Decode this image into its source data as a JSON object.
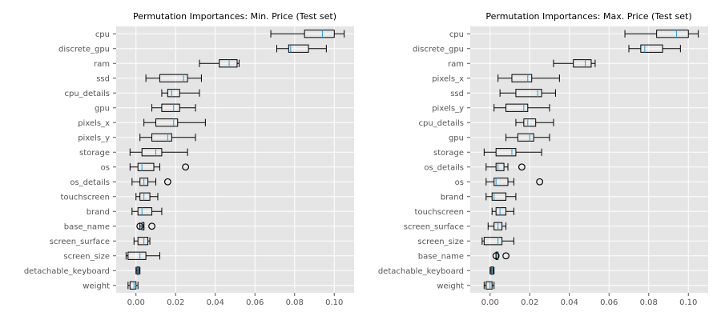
{
  "chart_data": [
    {
      "type": "boxplot",
      "title": "Permutation Importances: Min. Price (Test set)",
      "xlim": [
        -0.01,
        0.11
      ],
      "xticks": [
        0.0,
        0.02,
        0.04,
        0.06,
        0.08,
        0.1
      ],
      "xtick_labels": [
        "0.00",
        "0.02",
        "0.04",
        "0.06",
        "0.08",
        "0.10"
      ],
      "features": [
        {
          "name": "cpu",
          "whislo": 0.068,
          "q1": 0.085,
          "med": 0.094,
          "q3": 0.1,
          "whishi": 0.105,
          "fliers": []
        },
        {
          "name": "discrete_gpu",
          "whislo": 0.071,
          "q1": 0.077,
          "med": 0.078,
          "q3": 0.087,
          "whishi": 0.096,
          "fliers": []
        },
        {
          "name": "ram",
          "whislo": 0.032,
          "q1": 0.042,
          "med": 0.047,
          "q3": 0.051,
          "whishi": 0.052,
          "fliers": []
        },
        {
          "name": "ssd",
          "whislo": 0.005,
          "q1": 0.012,
          "med": 0.024,
          "q3": 0.026,
          "whishi": 0.033,
          "fliers": []
        },
        {
          "name": "cpu_details",
          "whislo": 0.013,
          "q1": 0.016,
          "med": 0.018,
          "q3": 0.022,
          "whishi": 0.032,
          "fliers": []
        },
        {
          "name": "gpu",
          "whislo": 0.008,
          "q1": 0.013,
          "med": 0.019,
          "q3": 0.022,
          "whishi": 0.03,
          "fliers": []
        },
        {
          "name": "pixels_x",
          "whislo": 0.004,
          "q1": 0.01,
          "med": 0.019,
          "q3": 0.021,
          "whishi": 0.035,
          "fliers": []
        },
        {
          "name": "pixels_y",
          "whislo": 0.002,
          "q1": 0.008,
          "med": 0.016,
          "q3": 0.018,
          "whishi": 0.03,
          "fliers": []
        },
        {
          "name": "storage",
          "whislo": -0.003,
          "q1": 0.003,
          "med": 0.01,
          "q3": 0.013,
          "whishi": 0.026,
          "fliers": []
        },
        {
          "name": "os",
          "whislo": -0.003,
          "q1": 0.001,
          "med": 0.003,
          "q3": 0.009,
          "whishi": 0.012,
          "fliers": [
            0.025
          ]
        },
        {
          "name": "os_details",
          "whislo": -0.002,
          "q1": 0.002,
          "med": 0.004,
          "q3": 0.006,
          "whishi": 0.01,
          "fliers": [
            0.016
          ]
        },
        {
          "name": "touchscreen",
          "whislo": 0.0,
          "q1": 0.002,
          "med": 0.004,
          "q3": 0.007,
          "whishi": 0.011,
          "fliers": []
        },
        {
          "name": "brand",
          "whislo": -0.002,
          "q1": 0.001,
          "med": 0.003,
          "q3": 0.008,
          "whishi": 0.013,
          "fliers": []
        },
        {
          "name": "base_name",
          "whislo": 0.002,
          "q1": 0.003,
          "med": 0.003,
          "q3": 0.004,
          "whishi": 0.004,
          "fliers": [
            0.002,
            0.008
          ]
        },
        {
          "name": "screen_surface",
          "whislo": -0.001,
          "q1": 0.001,
          "med": 0.004,
          "q3": 0.006,
          "whishi": 0.007,
          "fliers": []
        },
        {
          "name": "screen_size",
          "whislo": -0.005,
          "q1": -0.004,
          "med": 0.002,
          "q3": 0.005,
          "whishi": 0.012,
          "fliers": []
        },
        {
          "name": "detachable_keyboard",
          "whislo": 0.0,
          "q1": 0.0005,
          "med": 0.001,
          "q3": 0.0015,
          "whishi": 0.002,
          "fliers": []
        },
        {
          "name": "weight",
          "whislo": -0.004,
          "q1": -0.003,
          "med": -0.001,
          "q3": 0.0,
          "whishi": 0.001,
          "fliers": []
        }
      ]
    },
    {
      "type": "boxplot",
      "title": "Permutation Importances: Max. Price (Test set)",
      "xlim": [
        -0.01,
        0.11
      ],
      "xticks": [
        0.0,
        0.02,
        0.04,
        0.06,
        0.08,
        0.1
      ],
      "xtick_labels": [
        "0.00",
        "0.02",
        "0.04",
        "0.06",
        "0.08",
        "0.10"
      ],
      "features": [
        {
          "name": "cpu",
          "whislo": 0.068,
          "q1": 0.084,
          "med": 0.094,
          "q3": 0.1,
          "whishi": 0.105,
          "fliers": []
        },
        {
          "name": "discrete_gpu",
          "whislo": 0.07,
          "q1": 0.076,
          "med": 0.078,
          "q3": 0.087,
          "whishi": 0.096,
          "fliers": []
        },
        {
          "name": "ram",
          "whislo": 0.032,
          "q1": 0.042,
          "med": 0.048,
          "q3": 0.051,
          "whishi": 0.053,
          "fliers": []
        },
        {
          "name": "pixels_x",
          "whislo": 0.004,
          "q1": 0.011,
          "med": 0.019,
          "q3": 0.021,
          "whishi": 0.035,
          "fliers": []
        },
        {
          "name": "ssd",
          "whislo": 0.005,
          "q1": 0.013,
          "med": 0.024,
          "q3": 0.026,
          "whishi": 0.033,
          "fliers": []
        },
        {
          "name": "pixels_y",
          "whislo": 0.002,
          "q1": 0.008,
          "med": 0.017,
          "q3": 0.019,
          "whishi": 0.03,
          "fliers": []
        },
        {
          "name": "cpu_details",
          "whislo": 0.013,
          "q1": 0.017,
          "med": 0.019,
          "q3": 0.023,
          "whishi": 0.032,
          "fliers": []
        },
        {
          "name": "gpu",
          "whislo": 0.008,
          "q1": 0.014,
          "med": 0.02,
          "q3": 0.022,
          "whishi": 0.03,
          "fliers": []
        },
        {
          "name": "storage",
          "whislo": -0.003,
          "q1": 0.003,
          "med": 0.011,
          "q3": 0.013,
          "whishi": 0.026,
          "fliers": []
        },
        {
          "name": "os_details",
          "whislo": -0.002,
          "q1": 0.003,
          "med": 0.004,
          "q3": 0.007,
          "whishi": 0.009,
          "fliers": [
            0.016
          ]
        },
        {
          "name": "os",
          "whislo": -0.002,
          "q1": 0.002,
          "med": 0.003,
          "q3": 0.009,
          "whishi": 0.012,
          "fliers": [
            0.025
          ]
        },
        {
          "name": "brand",
          "whislo": -0.002,
          "q1": 0.001,
          "med": 0.002,
          "q3": 0.008,
          "whishi": 0.013,
          "fliers": []
        },
        {
          "name": "touchscreen",
          "whislo": 0.001,
          "q1": 0.003,
          "med": 0.005,
          "q3": 0.008,
          "whishi": 0.012,
          "fliers": []
        },
        {
          "name": "screen_surface",
          "whislo": -0.001,
          "q1": 0.002,
          "med": 0.004,
          "q3": 0.006,
          "whishi": 0.008,
          "fliers": []
        },
        {
          "name": "screen_size",
          "whislo": -0.004,
          "q1": -0.003,
          "med": 0.004,
          "q3": 0.006,
          "whishi": 0.012,
          "fliers": []
        },
        {
          "name": "base_name",
          "whislo": 0.003,
          "q1": 0.003,
          "med": 0.004,
          "q3": 0.004,
          "whishi": 0.004,
          "fliers": [
            0.003,
            0.008
          ]
        },
        {
          "name": "detachable_keyboard",
          "whislo": 0.0,
          "q1": 0.0005,
          "med": 0.001,
          "q3": 0.0015,
          "whishi": 0.002,
          "fliers": []
        },
        {
          "name": "weight",
          "whislo": -0.003,
          "q1": -0.002,
          "med": 0.0,
          "q3": 0.001,
          "whishi": 0.002,
          "fliers": []
        }
      ]
    }
  ]
}
